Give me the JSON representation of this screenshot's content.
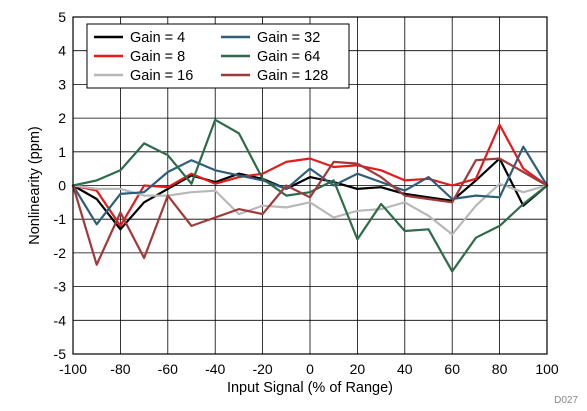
{
  "chart_data": {
    "type": "line",
    "title": "",
    "xlabel": "Input Signal (% of Range)",
    "ylabel": "Nonlinearity (ppm)",
    "xlim": [
      -100,
      100
    ],
    "ylim": [
      -5,
      5
    ],
    "xticks": [
      -100,
      -80,
      -60,
      -40,
      -20,
      0,
      20,
      40,
      60,
      80,
      100
    ],
    "yticks": [
      5,
      4,
      3,
      2,
      1,
      0,
      -1,
      -2,
      -3,
      -4,
      -5
    ],
    "grid": true,
    "legend_position": "top-left",
    "figure_code": "D027",
    "x": [
      -100,
      -90,
      -80,
      -70,
      -60,
      -50,
      -40,
      -30,
      -20,
      -10,
      0,
      10,
      20,
      30,
      40,
      50,
      60,
      70,
      80,
      90,
      100
    ],
    "series": [
      {
        "name": "Gain = 4",
        "color": "#000000",
        "values": [
          0,
          -0.4,
          -1.3,
          -0.5,
          -0.1,
          0.3,
          0.1,
          0.35,
          0.2,
          -0.1,
          0.25,
          0.1,
          -0.1,
          -0.05,
          -0.25,
          -0.35,
          -0.45,
          0.15,
          0.8,
          -0.6,
          0
        ]
      },
      {
        "name": "Gain = 8",
        "color": "#e41a1c",
        "values": [
          0,
          -0.15,
          -1.2,
          0.0,
          -0.05,
          0.35,
          0.05,
          0.25,
          0.35,
          0.7,
          0.8,
          0.55,
          0.6,
          0.45,
          0.15,
          0.2,
          0.0,
          0.2,
          1.8,
          0.5,
          0
        ]
      },
      {
        "name": "Gain = 16",
        "color": "#b8b8b8",
        "values": [
          0,
          -0.1,
          -0.1,
          -0.3,
          -0.3,
          -0.2,
          -0.15,
          -0.85,
          -0.6,
          -0.65,
          -0.5,
          -0.95,
          -0.75,
          -0.7,
          -0.5,
          -0.9,
          -1.45,
          -0.6,
          0.05,
          -0.2,
          0
        ]
      },
      {
        "name": "Gain = 32",
        "color": "#2e5e78",
        "values": [
          0,
          -1.15,
          -0.25,
          -0.2,
          0.4,
          0.75,
          0.45,
          0.3,
          0.15,
          -0.1,
          0.5,
          0.0,
          0.35,
          0.1,
          -0.15,
          0.25,
          -0.4,
          -0.3,
          -0.35,
          1.15,
          0
        ]
      },
      {
        "name": "Gain = 64",
        "color": "#2d6b4a",
        "values": [
          0,
          0.15,
          0.45,
          1.25,
          0.9,
          0.05,
          1.95,
          1.55,
          0.2,
          -0.3,
          -0.2,
          0.15,
          -1.6,
          -0.55,
          -1.35,
          -1.3,
          -2.55,
          -1.55,
          -1.2,
          -0.55,
          0
        ]
      },
      {
        "name": "Gain = 128",
        "color": "#a0393a",
        "values": [
          0,
          -2.35,
          -0.8,
          -2.15,
          -0.3,
          -1.2,
          -0.95,
          -0.7,
          -0.85,
          0.0,
          -0.35,
          0.7,
          0.65,
          0.25,
          -0.3,
          -0.4,
          -0.5,
          0.75,
          0.8,
          0.4,
          0
        ]
      }
    ]
  }
}
